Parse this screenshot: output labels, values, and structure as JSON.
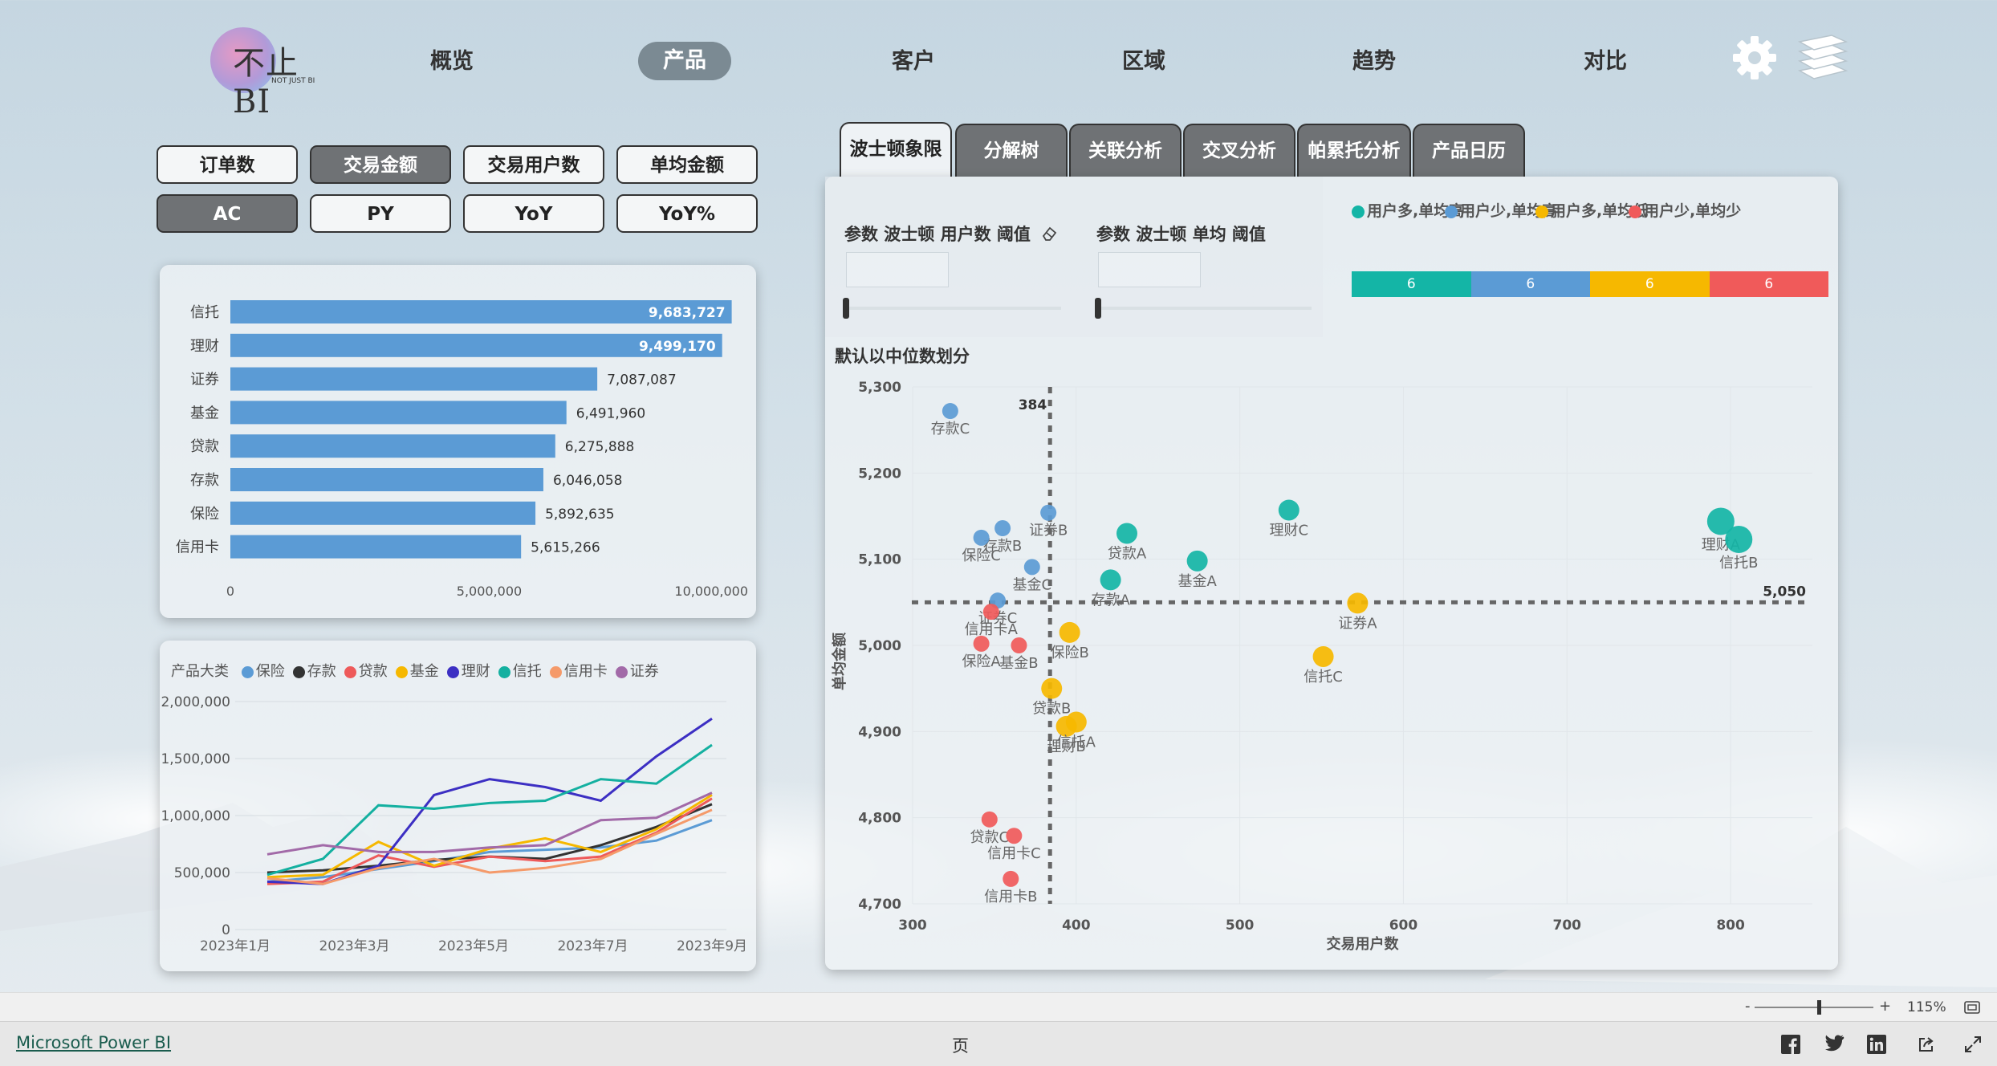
{
  "nav": {
    "items": [
      "概览",
      "产品",
      "客户",
      "区域",
      "趋势",
      "对比"
    ],
    "active": "产品"
  },
  "logo": {
    "text": "不止BI",
    "sub": "NOT JUST BI"
  },
  "metric_buttons": {
    "row1": [
      "订单数",
      "交易金额",
      "交易用户数",
      "单均金额"
    ],
    "row2": [
      "AC",
      "PY",
      "YoY",
      "YoY%"
    ],
    "selected_row1": "交易金额",
    "selected_row2": "AC"
  },
  "bar_panel": {
    "categories": [
      "信托",
      "理财",
      "证券",
      "基金",
      "贷款",
      "存款",
      "保险",
      "信用卡"
    ],
    "values": [
      9683727,
      9499170,
      7087087,
      6491960,
      6275888,
      6046058,
      5892635,
      5615266
    ],
    "value_labels": [
      "9,683,727",
      "9,499,170",
      "7,087,087",
      "6,491,960",
      "6,275,888",
      "6,046,058",
      "5,892,635",
      "5,615,266"
    ],
    "x_ticks": [
      "0",
      "5,000,000",
      "10,000,000"
    ],
    "xlim": [
      0,
      10000000
    ],
    "color": "#5b9bd5"
  },
  "line_panel": {
    "legend_title": "产品大类",
    "series_names": [
      "保险",
      "存款",
      "贷款",
      "基金",
      "理财",
      "信托",
      "信用卡",
      "证券"
    ],
    "colors": [
      "#5b9bd5",
      "#333333",
      "#ee5a5a",
      "#f6b800",
      "#3c2fc3",
      "#14b0a0",
      "#f59a6a",
      "#a26aa8"
    ],
    "y_ticks": [
      "2,000,000",
      "1,500,000",
      "1,000,000",
      "500,000",
      "0"
    ],
    "x_ticks": [
      "2023年1月",
      "2023年3月",
      "2023年5月",
      "2023年7月",
      "2023年9月"
    ]
  },
  "tabs": {
    "items": [
      "波士顿象限",
      "分解树",
      "关联分析",
      "交叉分析",
      "帕累托分析",
      "产品日历"
    ],
    "active": "波士顿象限"
  },
  "params": {
    "users_label": "参数 波士顿 用户数 阈值",
    "avg_label": "参数 波士顿 单均 阈值"
  },
  "quadrant_legend": {
    "items": [
      {
        "label": "用户多,单均高",
        "color": "#14b5a6",
        "count": "6"
      },
      {
        "label": "用户少,单均高",
        "color": "#5b9bd5",
        "count": "6"
      },
      {
        "label": "用户多,单均低",
        "color": "#f6b800",
        "count": "6"
      },
      {
        "label": "用户少,单均少",
        "color": "#f05a5a",
        "count": "6"
      }
    ]
  },
  "chart_data": {
    "type": "scatter",
    "title": "默认以中位数划分",
    "xlabel": "交易用户数",
    "ylabel": "单均金额",
    "xlim": [
      300,
      850
    ],
    "ylim": [
      4700,
      5300
    ],
    "x_ticks": [
      "300",
      "400",
      "500",
      "600",
      "700",
      "800"
    ],
    "y_ticks": [
      "5,300",
      "5,200",
      "5,100",
      "5,000",
      "4,900",
      "4,800",
      "4,700"
    ],
    "median_x": 384,
    "median_x_label": "384",
    "median_y": 5050,
    "median_y_label": "5,050",
    "points": [
      {
        "label": "存款C",
        "x": 323,
        "y": 5272,
        "group": 1
      },
      {
        "label": "存款B",
        "x": 355,
        "y": 5136,
        "group": 1
      },
      {
        "label": "保险C",
        "x": 342,
        "y": 5125,
        "group": 1
      },
      {
        "label": "证券B",
        "x": 383,
        "y": 5154,
        "group": 1
      },
      {
        "label": "基金C",
        "x": 373,
        "y": 5091,
        "group": 1
      },
      {
        "label": "证券C",
        "x": 352,
        "y": 5052,
        "group": 1
      },
      {
        "label": "理财A",
        "x": 794,
        "y": 5144,
        "group": 0
      },
      {
        "label": "信托B",
        "x": 805,
        "y": 5123,
        "group": 0
      },
      {
        "label": "理财C",
        "x": 530,
        "y": 5157,
        "group": 0
      },
      {
        "label": "贷款A",
        "x": 431,
        "y": 5130,
        "group": 0
      },
      {
        "label": "基金A",
        "x": 474,
        "y": 5098,
        "group": 0
      },
      {
        "label": "存款A",
        "x": 421,
        "y": 5076,
        "group": 0
      },
      {
        "label": "证券A",
        "x": 572,
        "y": 5049,
        "group": 2
      },
      {
        "label": "信托C",
        "x": 551,
        "y": 4987,
        "group": 2
      },
      {
        "label": "保险B",
        "x": 396,
        "y": 5015,
        "group": 2
      },
      {
        "label": "贷款B",
        "x": 385,
        "y": 4950,
        "group": 2
      },
      {
        "label": "理财B",
        "x": 394,
        "y": 4906,
        "group": 2
      },
      {
        "label": "信托A",
        "x": 400,
        "y": 4911,
        "group": 2
      },
      {
        "label": "信用卡A",
        "x": 348,
        "y": 5039,
        "group": 3
      },
      {
        "label": "保险A",
        "x": 342,
        "y": 5002,
        "group": 3
      },
      {
        "label": "基金B",
        "x": 365,
        "y": 5000,
        "group": 3
      },
      {
        "label": "贷款C",
        "x": 347,
        "y": 4798,
        "group": 3
      },
      {
        "label": "信用卡C",
        "x": 362,
        "y": 4779,
        "group": 3
      },
      {
        "label": "信用卡B",
        "x": 360,
        "y": 4729,
        "group": 3
      }
    ]
  },
  "status": {
    "zoom": "115%",
    "minus": "-",
    "plus": "+"
  },
  "footer": {
    "brand": "Microsoft Power BI",
    "page": "页"
  }
}
